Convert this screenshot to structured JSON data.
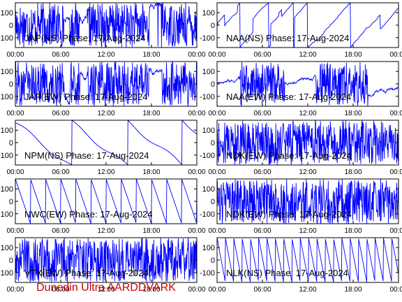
{
  "footer": "Dunedin Ultra AARDDVARK",
  "colors": {
    "trace": "#0000ff",
    "axis": "#000000",
    "footer": "#cc0000"
  },
  "chart_data": [
    {
      "type": "line",
      "title": "JAP(NS) Phase: 17-Aug-2024",
      "pattern": "dense",
      "xticks": [
        "00:00",
        "06:00",
        "12:00",
        "18:00",
        "00:00"
      ],
      "yticks": [
        "100",
        "0",
        "-100"
      ],
      "xlim": [
        0,
        24
      ],
      "ylim": [
        -180,
        180
      ]
    },
    {
      "type": "line",
      "title": "NAA(NS) Phase: 17-Aug-2024",
      "pattern": "sparse",
      "xticks": [
        "00:00",
        "06:00",
        "12:00",
        "18:00",
        "00:00"
      ],
      "yticks": [
        "100",
        "0",
        "-100"
      ],
      "xlim": [
        0,
        24
      ],
      "ylim": [
        -180,
        180
      ]
    },
    {
      "type": "line",
      "title": "JAP(EW) Phase: 17-Aug-2024",
      "pattern": "dense",
      "xticks": [
        "00:00",
        "06:00",
        "12:00",
        "18:00",
        "00:00"
      ],
      "yticks": [
        "100",
        "0",
        "-100"
      ],
      "xlim": [
        0,
        24
      ],
      "ylim": [
        -180,
        180
      ]
    },
    {
      "type": "line",
      "title": "NAA(EW) Phase: 17-Aug-2024",
      "pattern": "mixed",
      "xticks": [
        "00:00",
        "06:00",
        "12:00",
        "18:00",
        "00:00"
      ],
      "yticks": [
        "100",
        "0",
        "-100"
      ],
      "xlim": [
        0,
        24
      ],
      "ylim": [
        -180,
        180
      ]
    },
    {
      "type": "line",
      "title": "NPM(NS) Phase: 17-Aug-2024",
      "pattern": "slow",
      "xticks": [
        "00:00",
        "06:00",
        "12:00",
        "18:00",
        "00:00"
      ],
      "yticks": [
        "100",
        "0",
        "-100"
      ],
      "xlim": [
        0,
        24
      ],
      "ylim": [
        -180,
        180
      ]
    },
    {
      "type": "line",
      "title": "NDK(EW) Phase: 17-Aug-2024",
      "pattern": "noise",
      "xticks": [
        "00:00",
        "06:00",
        "12:00",
        "18:00",
        "00:00"
      ],
      "yticks": [
        "100",
        "0",
        "-100"
      ],
      "xlim": [
        0,
        24
      ],
      "ylim": [
        -180,
        180
      ]
    },
    {
      "type": "line",
      "title": "NWC(EW) Phase: 17-Aug-2024",
      "pattern": "saw",
      "xticks": [
        "00:00",
        "06:00",
        "12:00",
        "18:00",
        "00:00"
      ],
      "yticks": [
        "100",
        "0",
        "-100"
      ],
      "xlim": [
        0,
        24
      ],
      "ylim": [
        -180,
        180
      ]
    },
    {
      "type": "line",
      "title": "NDK(EW) Phase: 17-Aug-2024",
      "pattern": "noise",
      "xticks": [
        "00:00",
        "06:00",
        "12:00",
        "18:00",
        "00:00"
      ],
      "yticks": [
        "100",
        "0",
        "-100"
      ],
      "xlim": [
        0,
        24
      ],
      "ylim": [
        -180,
        180
      ]
    },
    {
      "type": "line",
      "title": "VTX(EW) Phase: 17-Aug-2024",
      "pattern": "noise",
      "xticks": [
        "00:00",
        "06:00",
        "12:00",
        "18:00",
        "00:00"
      ],
      "yticks": [
        "100",
        "0",
        "-100"
      ],
      "xlim": [
        0,
        24
      ],
      "ylim": [
        -180,
        180
      ]
    },
    {
      "type": "line",
      "title": "NLK(NS) Phase: 17-Aug-2024",
      "pattern": "fastsaw",
      "xticks": [
        "00:00",
        "06:00",
        "12:00",
        "18:00",
        "00:00"
      ],
      "yticks": [
        "100",
        "0",
        "-100"
      ],
      "xlim": [
        0,
        24
      ],
      "ylim": [
        -180,
        180
      ]
    }
  ]
}
